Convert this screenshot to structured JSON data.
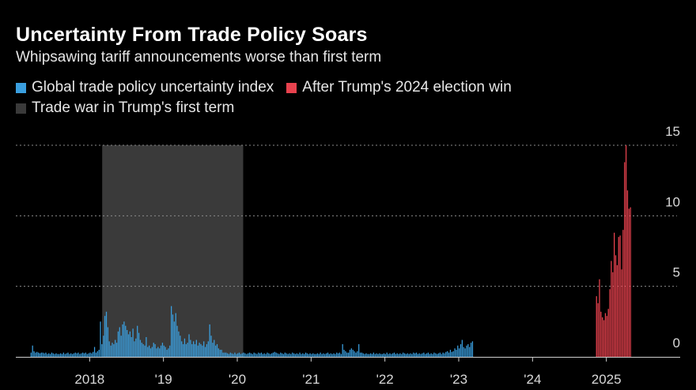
{
  "chart_data": {
    "type": "bar",
    "title": "Uncertainty From Trade Policy Soars",
    "subtitle": "Whipsawing tariff announcements worse than first term",
    "legend": [
      {
        "label": "Global trade policy uncertainty index",
        "color": "#3a9fdf"
      },
      {
        "label": "After Trump's 2024 election win",
        "color": "#e8424e"
      },
      {
        "label": "Trade war in Trump's first term",
        "color": "#3a3a3a"
      }
    ],
    "x_range": [
      2017.0,
      2026.0
    ],
    "ylim": [
      0,
      15
    ],
    "y_ticks": [
      0,
      5,
      10,
      15
    ],
    "y_tick_labels": [
      "0",
      "5",
      "10",
      "15"
    ],
    "x_ticks": [
      2018,
      2019,
      2020,
      2021,
      2022,
      2023,
      2024,
      2025
    ],
    "x_tick_labels": [
      "2018",
      "'19",
      "'20",
      "'21",
      "'22",
      "'23",
      "'24",
      "2025"
    ],
    "shaded_period": {
      "label": "Trade war in Trump's first term",
      "start": 2018.17,
      "end": 2020.08
    },
    "split_date": 2024.85,
    "series": [
      {
        "name": "Global trade policy uncertainty index",
        "x_start": 2017.2,
        "x_step": 0.02,
        "values": [
          0.3,
          0.8,
          0.4,
          0.3,
          0.35,
          0.3,
          0.25,
          0.3,
          0.3,
          0.25,
          0.3,
          0.2,
          0.25,
          0.2,
          0.3,
          0.25,
          0.2,
          0.25,
          0.2,
          0.2,
          0.25,
          0.2,
          0.3,
          0.2,
          0.25,
          0.3,
          0.2,
          0.25,
          0.2,
          0.25,
          0.3,
          0.25,
          0.3,
          0.2,
          0.25,
          0.3,
          0.25,
          0.3,
          0.2,
          0.25,
          0.3,
          0.25,
          0.35,
          0.7,
          0.3,
          0.4,
          0.5,
          2.5,
          0.9,
          1.5,
          2.9,
          3.2,
          2.1,
          1.1,
          0.8,
          1.0,
          0.9,
          1.2,
          1.0,
          1.8,
          2.1,
          1.5,
          2.3,
          2.5,
          2.2,
          1.9,
          1.6,
          1.8,
          1.4,
          2.0,
          1.1,
          1.3,
          2.2,
          1.7,
          1.2,
          1.0,
          0.9,
          0.8,
          1.4,
          0.7,
          0.8,
          0.6,
          0.7,
          1.0,
          0.9,
          0.6,
          0.7,
          0.6,
          0.8,
          1.0,
          0.8,
          0.7,
          0.5,
          0.6,
          0.8,
          3.6,
          3.0,
          2.5,
          3.1,
          2.2,
          1.8,
          1.5,
          1.1,
          0.9,
          1.3,
          0.9,
          1.0,
          1.6,
          1.2,
          0.9,
          1.1,
          0.9,
          1.2,
          0.8,
          1.0,
          0.9,
          0.8,
          1.1,
          0.7,
          0.9,
          1.1,
          2.3,
          1.5,
          1.0,
          1.2,
          0.8,
          0.9,
          0.6,
          0.5,
          0.5,
          0.3,
          0.3,
          0.3,
          0.25,
          0.2,
          0.3,
          0.25,
          0.2,
          0.3,
          0.2,
          0.25,
          0.3,
          0.2,
          0.25,
          0.3,
          0.25,
          0.2,
          0.25,
          0.3,
          0.25,
          0.2,
          0.3,
          0.25,
          0.2,
          0.3,
          0.25,
          0.3,
          0.2,
          0.25,
          0.2,
          0.3,
          0.25,
          0.2,
          0.25,
          0.3,
          0.35,
          0.3,
          0.25,
          0.2,
          0.3,
          0.25,
          0.2,
          0.3,
          0.25,
          0.2,
          0.25,
          0.2,
          0.3,
          0.25,
          0.2,
          0.25,
          0.2,
          0.3,
          0.2,
          0.25,
          0.2,
          0.3,
          0.25,
          0.2,
          0.25,
          0.2,
          0.25,
          0.2,
          0.2,
          0.25,
          0.2,
          0.3,
          0.2,
          0.25,
          0.2,
          0.25,
          0.3,
          0.2,
          0.25,
          0.2,
          0.25,
          0.2,
          0.3,
          0.25,
          0.3,
          0.2,
          0.9,
          0.5,
          0.4,
          0.3,
          0.3,
          0.5,
          0.6,
          0.5,
          0.4,
          0.3,
          0.4,
          0.9,
          0.3,
          0.3,
          0.25,
          0.2,
          0.25,
          0.2,
          0.2,
          0.25,
          0.2,
          0.3,
          0.2,
          0.25,
          0.2,
          0.25,
          0.2,
          0.2,
          0.25,
          0.2,
          0.3,
          0.2,
          0.25,
          0.2,
          0.25,
          0.3,
          0.2,
          0.25,
          0.2,
          0.25,
          0.2,
          0.3,
          0.25,
          0.2,
          0.25,
          0.2,
          0.25,
          0.2,
          0.3,
          0.25,
          0.3,
          0.2,
          0.25,
          0.2,
          0.25,
          0.3,
          0.2,
          0.25,
          0.3,
          0.2,
          0.25,
          0.2,
          0.3,
          0.25,
          0.2,
          0.25,
          0.3,
          0.2,
          0.3,
          0.25,
          0.35,
          0.4,
          0.3,
          0.5,
          0.35,
          0.4,
          0.6,
          0.5,
          0.8,
          0.6,
          0.9,
          1.2,
          0.7,
          0.6,
          0.8,
          0.9,
          0.7,
          1.0,
          1.1
        ]
      },
      {
        "name": "After Trump's 2024 election win",
        "x_start": 2024.86,
        "x_step": 0.02,
        "values": [
          4.3,
          3.8,
          5.5,
          3.2,
          2.8,
          2.6,
          3.1,
          2.9,
          3.4,
          4.8,
          6.8,
          6.0,
          8.8,
          7.2,
          6.5,
          8.5,
          8.6,
          6.2,
          9.0,
          13.8,
          15.0,
          11.8,
          10.5,
          10.6
        ]
      }
    ]
  }
}
